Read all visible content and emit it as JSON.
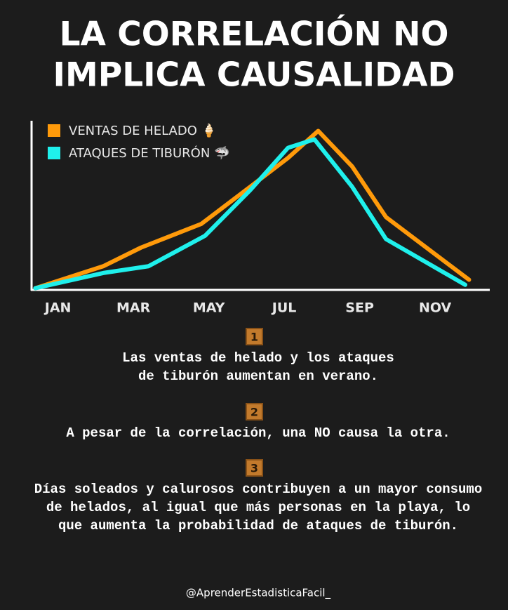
{
  "title": [
    "LA CORRELACIÓN NO",
    "IMPLICA CAUSALIDAD"
  ],
  "chart_data": {
    "type": "line",
    "xlim": [
      0.3,
      12.45
    ],
    "ylim": [
      0,
      100
    ],
    "xticks": [
      {
        "value": 1,
        "label": "JAN"
      },
      {
        "value": 3,
        "label": "MAR"
      },
      {
        "value": 5,
        "label": "MAY"
      },
      {
        "value": 7,
        "label": "JUL"
      },
      {
        "value": 9,
        "label": "SEP"
      },
      {
        "value": 11,
        "label": "NOV"
      }
    ],
    "legend": "top-left",
    "series": [
      {
        "name": "VENTAS DE HELADO 🍦",
        "color": "#ff9a0a",
        "x": [
          0.4,
          2.2,
          3.2,
          4.8,
          6.1,
          7.1,
          7.9,
          8.8,
          9.7,
          11.9
        ],
        "values": [
          1,
          14,
          25,
          39,
          61,
          78,
          94,
          73,
          43,
          6
        ]
      },
      {
        "name": "ATAQUES DE TIBURÓN 🦈",
        "color": "#1ff0ec",
        "x": [
          0.4,
          2.2,
          3.4,
          4.9,
          6.1,
          7.1,
          7.8,
          8.8,
          9.7,
          11.8
        ],
        "values": [
          1,
          10,
          14,
          32,
          59,
          84,
          89,
          61,
          30,
          3
        ]
      }
    ]
  },
  "notes": [
    {
      "number": "1",
      "lines": [
        "Las ventas de helado y los ataques",
        "de tiburón aumentan en verano."
      ]
    },
    {
      "number": "2",
      "lines": [
        "A pesar de la correlación, una NO causa la otra."
      ]
    },
    {
      "number": "3",
      "lines": [
        "Días soleados y calurosos contribuyen a un mayor consumo",
        "de helados, al igual que más personas en la playa, lo",
        "que aumenta la probabilidad de ataques de tiburón."
      ]
    }
  ],
  "footer": "@AprenderEstadisticaFacil_"
}
